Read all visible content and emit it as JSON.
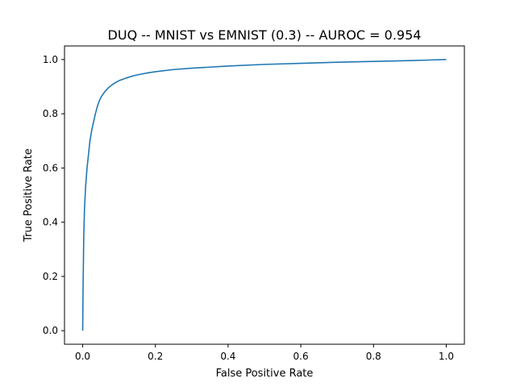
{
  "chart_data": {
    "type": "line",
    "title": "DUQ -- MNIST vs EMNIST (0.3) -- AUROC = 0.954",
    "xlabel": "False Positive Rate",
    "ylabel": "True Positive Rate",
    "xlim": [
      -0.05,
      1.05
    ],
    "ylim": [
      -0.05,
      1.05
    ],
    "grid": false,
    "legend": "none",
    "x_ticks": [
      {
        "value": 0.0,
        "label": "0.0"
      },
      {
        "value": 0.2,
        "label": "0.2"
      },
      {
        "value": 0.4,
        "label": "0.4"
      },
      {
        "value": 0.6,
        "label": "0.6"
      },
      {
        "value": 0.8,
        "label": "0.8"
      },
      {
        "value": 1.0,
        "label": "1.0"
      }
    ],
    "y_ticks": [
      {
        "value": 0.0,
        "label": "0.0"
      },
      {
        "value": 0.2,
        "label": "0.2"
      },
      {
        "value": 0.4,
        "label": "0.4"
      },
      {
        "value": 0.6,
        "label": "0.6"
      },
      {
        "value": 0.8,
        "label": "0.8"
      },
      {
        "value": 1.0,
        "label": "1.0"
      }
    ],
    "series": [
      {
        "color": "#1f77b4",
        "x": [
          0.0,
          0.001,
          0.002,
          0.003,
          0.005,
          0.008,
          0.012,
          0.016,
          0.02,
          0.025,
          0.03,
          0.035,
          0.04,
          0.045,
          0.05,
          0.06,
          0.07,
          0.08,
          0.09,
          0.1,
          0.12,
          0.14,
          0.16,
          0.18,
          0.2,
          0.25,
          0.3,
          0.4,
          0.5,
          0.6,
          0.7,
          0.8,
          0.9,
          0.95,
          1.0
        ],
        "y": [
          0.0,
          0.15,
          0.25,
          0.35,
          0.45,
          0.53,
          0.6,
          0.65,
          0.7,
          0.74,
          0.77,
          0.8,
          0.825,
          0.845,
          0.86,
          0.88,
          0.895,
          0.906,
          0.915,
          0.922,
          0.932,
          0.94,
          0.946,
          0.951,
          0.955,
          0.963,
          0.968,
          0.976,
          0.982,
          0.986,
          0.99,
          0.993,
          0.996,
          0.998,
          1.0
        ]
      }
    ]
  }
}
